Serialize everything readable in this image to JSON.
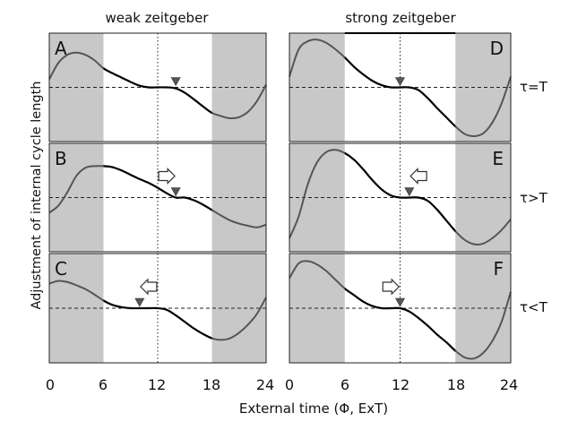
{
  "figure": {
    "column_titles": [
      "weak zeitgeber",
      "strong zeitgeber"
    ],
    "row_labels": [
      "τ=T",
      "τ>T",
      "τ<T"
    ],
    "ylabel": "Adjustment of internal cycle length",
    "xlabel": "External time (Φ, ExT)",
    "colors": {
      "night_shade": "#c8c8c8",
      "curve_night": "#555555",
      "curve_day": "#000000",
      "marker": "#555555"
    }
  },
  "chart_data": [
    {
      "type": "line",
      "panel": "A",
      "label": "A",
      "column": "weak zeitgeber",
      "row": "τ=T",
      "xlim": [
        0,
        24
      ],
      "ylim": [
        -1,
        1
      ],
      "night_spans": [
        [
          0,
          6
        ],
        [
          18,
          24
        ]
      ],
      "day_span_bar": [],
      "x": [
        0,
        1,
        2,
        3,
        4,
        5,
        6,
        7,
        8,
        9,
        10,
        11,
        12,
        13,
        14,
        15,
        16,
        17,
        18,
        19,
        20,
        21,
        22,
        23,
        24
      ],
      "y": [
        0.15,
        0.45,
        0.6,
        0.64,
        0.6,
        0.5,
        0.35,
        0.26,
        0.18,
        0.1,
        0.03,
        0.0,
        0.0,
        0.0,
        -0.02,
        -0.1,
        -0.22,
        -0.35,
        -0.47,
        -0.53,
        -0.57,
        -0.55,
        -0.45,
        -0.25,
        0.05
      ],
      "marker_x": 14,
      "arrow": "none",
      "arrow_x": null
    },
    {
      "type": "line",
      "panel": "B",
      "label": "B",
      "column": "weak zeitgeber",
      "row": "τ>T",
      "xlim": [
        0,
        24
      ],
      "ylim": [
        -1,
        1
      ],
      "night_spans": [
        [
          0,
          6
        ],
        [
          18,
          24
        ]
      ],
      "day_span_bar": [],
      "x": [
        0,
        1,
        2,
        3,
        4,
        5,
        6,
        7,
        8,
        9,
        10,
        11,
        12,
        13,
        14,
        15,
        16,
        17,
        18,
        19,
        20,
        21,
        22,
        23,
        24
      ],
      "y": [
        -0.28,
        -0.15,
        0.1,
        0.4,
        0.55,
        0.58,
        0.58,
        0.56,
        0.5,
        0.42,
        0.34,
        0.27,
        0.18,
        0.08,
        0.0,
        0.0,
        -0.05,
        -0.13,
        -0.23,
        -0.33,
        -0.42,
        -0.48,
        -0.52,
        -0.55,
        -0.5
      ],
      "marker_x": 14,
      "arrow": "right",
      "arrow_x": 13
    },
    {
      "type": "line",
      "panel": "C",
      "label": "C",
      "column": "weak zeitgeber",
      "row": "τ<T",
      "xlim": [
        0,
        24
      ],
      "ylim": [
        -1,
        1
      ],
      "night_spans": [
        [
          0,
          6
        ],
        [
          18,
          24
        ]
      ],
      "day_span_bar": [],
      "x": [
        0,
        1,
        2,
        3,
        4,
        5,
        6,
        7,
        8,
        9,
        10,
        11,
        12,
        13,
        14,
        15,
        16,
        17,
        18,
        19,
        20,
        21,
        22,
        23,
        24
      ],
      "y": [
        0.45,
        0.5,
        0.48,
        0.42,
        0.35,
        0.25,
        0.14,
        0.06,
        0.02,
        0.0,
        0.0,
        0.0,
        0.0,
        -0.03,
        -0.13,
        -0.25,
        -0.37,
        -0.47,
        -0.55,
        -0.58,
        -0.55,
        -0.45,
        -0.3,
        -0.1,
        0.2
      ],
      "marker_x": 10,
      "arrow": "left",
      "arrow_x": 11
    },
    {
      "type": "line",
      "panel": "D",
      "label": "D",
      "column": "strong zeitgeber",
      "row": "τ=T",
      "xlim": [
        0,
        24
      ],
      "ylim": [
        -1,
        1
      ],
      "night_spans": [
        [
          0,
          6
        ],
        [
          18,
          24
        ]
      ],
      "day_span_bar": [
        6,
        18
      ],
      "x": [
        0,
        1,
        2,
        3,
        4,
        5,
        6,
        7,
        8,
        9,
        10,
        11,
        12,
        13,
        14,
        15,
        16,
        17,
        18,
        19,
        20,
        21,
        22,
        23,
        24
      ],
      "y": [
        0.2,
        0.7,
        0.85,
        0.88,
        0.82,
        0.7,
        0.55,
        0.38,
        0.24,
        0.12,
        0.04,
        0.0,
        0.0,
        0.0,
        -0.05,
        -0.2,
        -0.38,
        -0.55,
        -0.72,
        -0.86,
        -0.9,
        -0.85,
        -0.65,
        -0.3,
        0.2
      ],
      "marker_x": 12,
      "arrow": "none",
      "arrow_x": null
    },
    {
      "type": "line",
      "panel": "E",
      "label": "E",
      "column": "strong zeitgeber",
      "row": "τ>T",
      "xlim": [
        0,
        24
      ],
      "ylim": [
        -1,
        1
      ],
      "night_spans": [
        [
          0,
          6
        ],
        [
          18,
          24
        ]
      ],
      "day_span_bar": [],
      "x": [
        0,
        1,
        2,
        3,
        4,
        5,
        6,
        7,
        8,
        9,
        10,
        11,
        12,
        13,
        14,
        15,
        16,
        17,
        18,
        19,
        20,
        21,
        22,
        23,
        24
      ],
      "y": [
        -0.75,
        -0.35,
        0.25,
        0.65,
        0.84,
        0.88,
        0.82,
        0.7,
        0.52,
        0.32,
        0.15,
        0.04,
        0.0,
        0.0,
        0.0,
        -0.06,
        -0.22,
        -0.42,
        -0.62,
        -0.78,
        -0.86,
        -0.85,
        -0.75,
        -0.6,
        -0.4
      ],
      "marker_x": 13,
      "arrow": "left",
      "arrow_x": 14
    },
    {
      "type": "line",
      "panel": "F",
      "label": "F",
      "column": "strong zeitgeber",
      "row": "τ<T",
      "xlim": [
        0,
        24
      ],
      "ylim": [
        -1,
        1
      ],
      "night_spans": [
        [
          0,
          6
        ],
        [
          18,
          24
        ]
      ],
      "day_span_bar": [],
      "x": [
        0,
        1,
        2,
        3,
        4,
        5,
        6,
        7,
        8,
        9,
        10,
        11,
        12,
        13,
        14,
        15,
        16,
        17,
        18,
        19,
        20,
        21,
        22,
        23,
        24
      ],
      "y": [
        0.55,
        0.82,
        0.86,
        0.8,
        0.68,
        0.52,
        0.36,
        0.24,
        0.12,
        0.04,
        0.0,
        0.0,
        0.0,
        -0.06,
        -0.18,
        -0.32,
        -0.48,
        -0.62,
        -0.78,
        -0.9,
        -0.92,
        -0.82,
        -0.6,
        -0.25,
        0.3
      ],
      "marker_x": 12,
      "arrow": "right",
      "arrow_x": 11
    }
  ],
  "x_axis": {
    "ticks": [
      "0",
      "6",
      "12",
      "18",
      "24"
    ]
  },
  "x_axis_right": {
    "ticks": [
      "0",
      "6",
      "12",
      "18",
      "24"
    ]
  }
}
